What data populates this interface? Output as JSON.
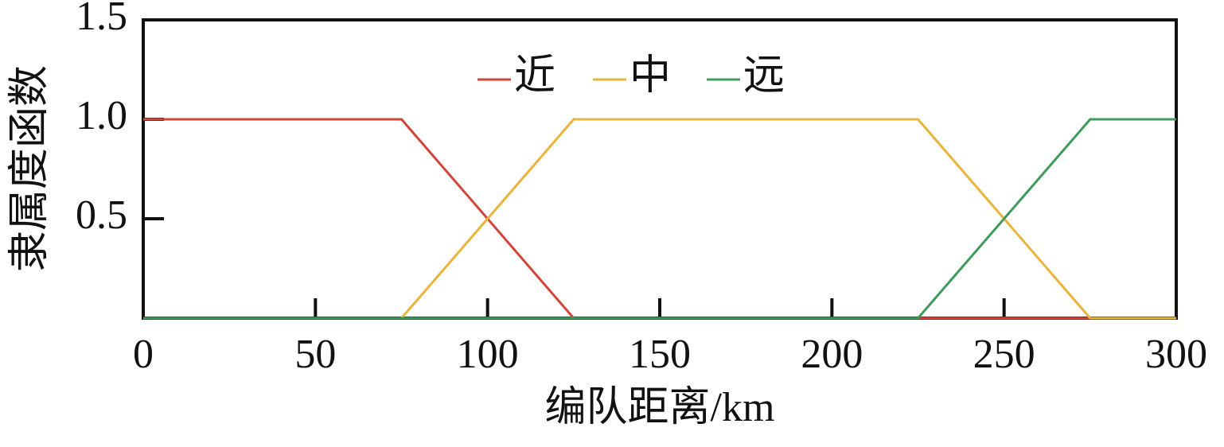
{
  "chart_data": {
    "type": "line",
    "x_label": "编队距离/km",
    "y_label": "隶属度函数",
    "x": [
      0,
      75,
      125,
      225,
      275,
      300
    ],
    "series": [
      {
        "name": "近",
        "color": "#d2453a",
        "values": [
          1,
          1,
          0,
          0,
          0,
          0
        ]
      },
      {
        "name": "中",
        "color": "#e9b43c",
        "values": [
          0,
          0,
          1,
          1,
          0,
          0
        ]
      },
      {
        "name": "远",
        "color": "#3f9b5b",
        "values": [
          0,
          0,
          0,
          0,
          1,
          1
        ]
      }
    ],
    "xlim": [
      0,
      300
    ],
    "xticks": [
      0,
      50,
      100,
      150,
      200,
      250,
      300
    ],
    "ylim": [
      0,
      1.5
    ],
    "yticks": [
      0.5,
      {
        "value": 1,
        "label": "1.0"
      },
      1.5
    ],
    "grid": false,
    "legend": "top"
  }
}
